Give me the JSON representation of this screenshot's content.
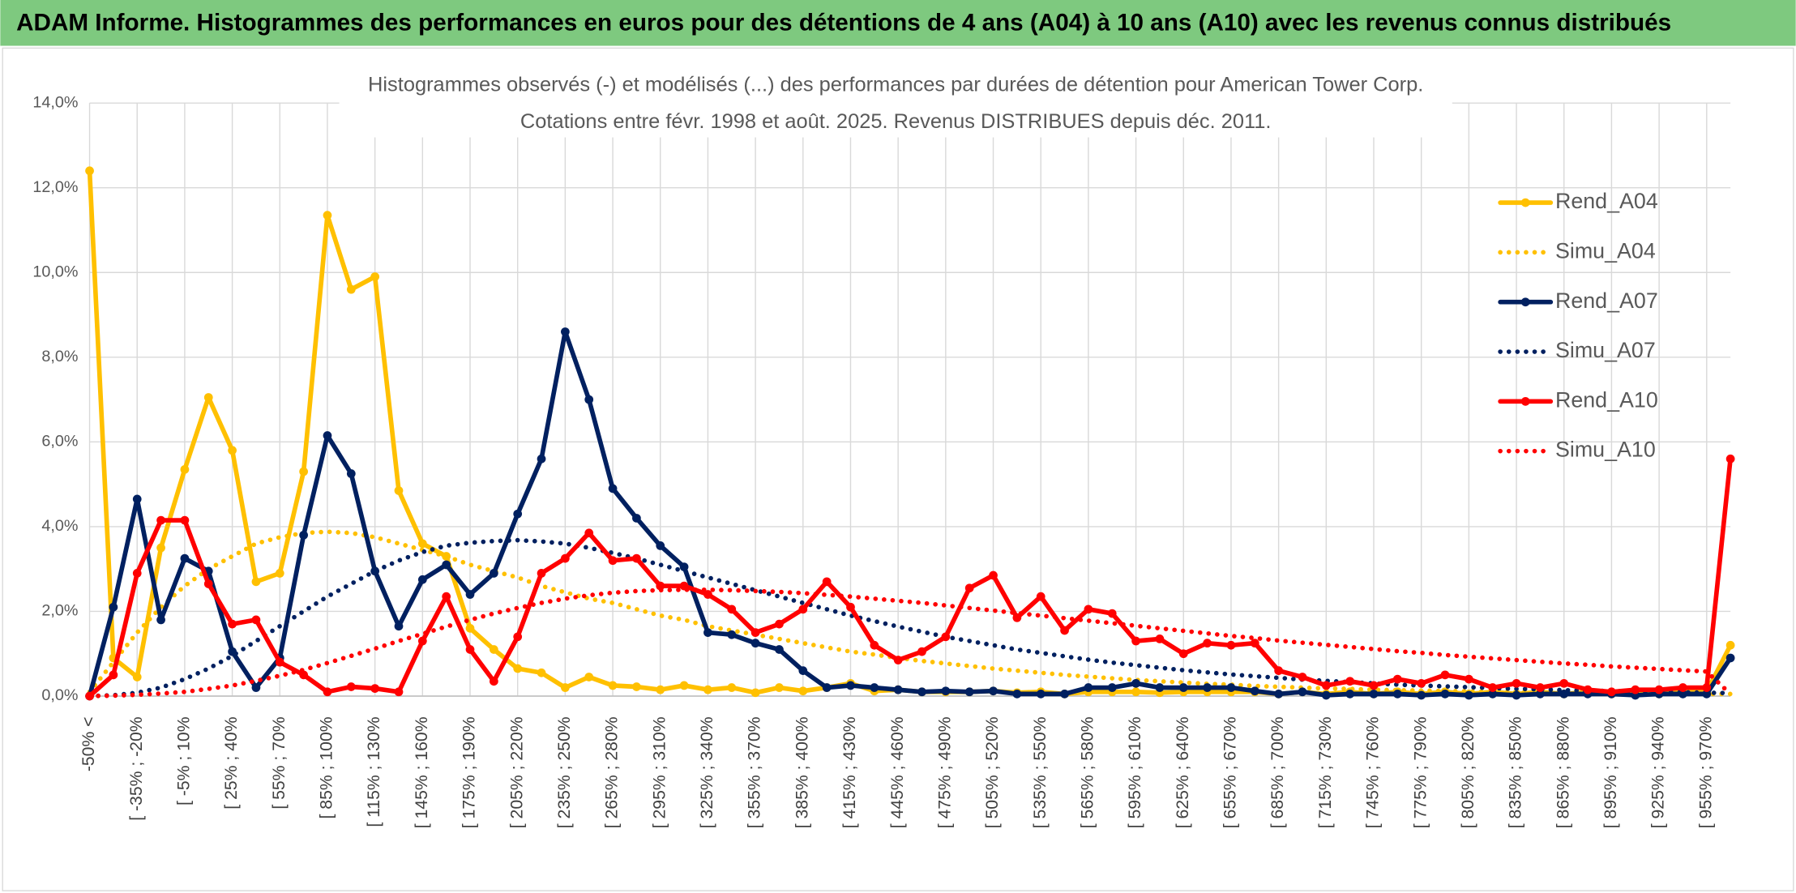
{
  "header": {
    "title": "ADAM Informe. Histogrammes des performances en euros pour des détentions de 4 ans (A04) à 10 ans (A10) avec les revenus connus distribués"
  },
  "chart_data": {
    "type": "line",
    "title": "Histogrammes observés (-) et modélisés (...) des performances par durées de détention pour American Tower Corp.",
    "subtitle": "Cotations entre févr. 1998 et août. 2025. Revenus DISTRIBUES depuis déc. 2011.",
    "categories": [
      "-50% <",
      null,
      "[ -35% ; -20%",
      null,
      "[ -5% ; 10%",
      null,
      "[ 25% ; 40%",
      null,
      "[ 55% ; 70%",
      null,
      "[ 85% ; 100%",
      null,
      "[ 115% ; 130%",
      null,
      "[ 145% ; 160%",
      null,
      "[ 175% ; 190%",
      null,
      "[ 205% ; 220%",
      null,
      "[ 235% ; 250%",
      null,
      "[ 265% ; 280%",
      null,
      "[ 295% ; 310%",
      null,
      "[ 325% ; 340%",
      null,
      "[ 355% ; 370%",
      null,
      "[ 385% ; 400%",
      null,
      "[ 415% ; 430%",
      null,
      "[ 445% ; 460%",
      null,
      "[ 475% ; 490%",
      null,
      "[ 505% ; 520%",
      null,
      "[ 535% ; 550%",
      null,
      "[ 565% ; 580%",
      null,
      "[ 595% ; 610%",
      null,
      "[ 625% ; 640%",
      null,
      "[ 655% ; 670%",
      null,
      "[ 685% ; 700%",
      null,
      "[ 715% ; 730%",
      null,
      "[ 745% ; 760%",
      null,
      "[ 775% ; 790%",
      null,
      "[ 805% ; 820%",
      null,
      "[ 835% ; 850%",
      null,
      "[ 865% ; 880%",
      null,
      "[ 895% ; 910%",
      null,
      "[ 925% ; 940%",
      null,
      "[ 955% ; 970%",
      null
    ],
    "series": [
      {
        "name": "Rend_A04",
        "color": "#ffc000",
        "style": "solid",
        "markers": true,
        "values": [
          12.4,
          0.9,
          0.45,
          3.5,
          5.35,
          7.05,
          5.8,
          2.7,
          2.9,
          5.3,
          11.35,
          9.6,
          9.9,
          4.85,
          3.6,
          3.3,
          1.6,
          1.1,
          0.65,
          0.55,
          0.2,
          0.45,
          0.25,
          0.22,
          0.15,
          0.25,
          0.15,
          0.2,
          0.08,
          0.2,
          0.12,
          0.2,
          0.3,
          0.12,
          0.15,
          0.1,
          0.1,
          0.1,
          0.12,
          0.08,
          0.1,
          0.05,
          0.1,
          0.1,
          0.1,
          0.08,
          0.1,
          0.1,
          0.1,
          0.1,
          0.05,
          0.1,
          0.05,
          0.1,
          0.05,
          0.1,
          0.05,
          0.1,
          0.05,
          0.1,
          0.05,
          0.1,
          0.05,
          0.1,
          0.05,
          0.1,
          0.05,
          0.1,
          0.1,
          1.2
        ]
      },
      {
        "name": "Simu_A04",
        "color": "#ffc000",
        "style": "dotted",
        "markers": false,
        "values": [
          0.1,
          0.8,
          1.5,
          2.1,
          2.6,
          3.0,
          3.3,
          3.6,
          3.75,
          3.85,
          3.88,
          3.85,
          3.75,
          3.6,
          3.45,
          3.3,
          3.1,
          2.95,
          2.8,
          2.6,
          2.45,
          2.3,
          2.2,
          2.05,
          1.9,
          1.8,
          1.65,
          1.55,
          1.45,
          1.35,
          1.25,
          1.15,
          1.05,
          0.98,
          0.9,
          0.83,
          0.77,
          0.71,
          0.65,
          0.6,
          0.55,
          0.5,
          0.46,
          0.42,
          0.38,
          0.35,
          0.32,
          0.29,
          0.27,
          0.24,
          0.22,
          0.2,
          0.18,
          0.17,
          0.15,
          0.14,
          0.13,
          0.12,
          0.11,
          0.1,
          0.09,
          0.09,
          0.08,
          0.08,
          0.07,
          0.07,
          0.06,
          0.06,
          0.05,
          0.05
        ]
      },
      {
        "name": "Rend_A07",
        "color": "#002060",
        "style": "solid",
        "markers": true,
        "values": [
          0,
          2.1,
          4.65,
          1.8,
          3.25,
          2.95,
          1.05,
          0.2,
          0.9,
          3.8,
          6.15,
          5.25,
          2.95,
          1.65,
          2.75,
          3.1,
          2.4,
          2.9,
          4.3,
          5.6,
          8.6,
          7.0,
          4.9,
          4.2,
          3.55,
          3.05,
          1.5,
          1.45,
          1.25,
          1.1,
          0.6,
          0.2,
          0.25,
          0.2,
          0.15,
          0.1,
          0.12,
          0.1,
          0.12,
          0.05,
          0.05,
          0.05,
          0.2,
          0.2,
          0.3,
          0.2,
          0.2,
          0.2,
          0.2,
          0.12,
          0.05,
          0.1,
          0.02,
          0.05,
          0.05,
          0.05,
          0.02,
          0.05,
          0.02,
          0.05,
          0.02,
          0.05,
          0.05,
          0.05,
          0.05,
          0.02,
          0.05,
          0.05,
          0.05,
          0.9
        ]
      },
      {
        "name": "Simu_A07",
        "color": "#002060",
        "style": "dotted",
        "markers": false,
        "values": [
          0,
          0.02,
          0.08,
          0.2,
          0.4,
          0.65,
          0.95,
          1.3,
          1.65,
          2.0,
          2.35,
          2.65,
          2.95,
          3.2,
          3.4,
          3.55,
          3.62,
          3.66,
          3.68,
          3.65,
          3.6,
          3.5,
          3.38,
          3.25,
          3.1,
          2.95,
          2.8,
          2.65,
          2.5,
          2.35,
          2.2,
          2.05,
          1.9,
          1.77,
          1.64,
          1.52,
          1.4,
          1.3,
          1.2,
          1.1,
          1.02,
          0.94,
          0.86,
          0.79,
          0.73,
          0.67,
          0.61,
          0.56,
          0.51,
          0.47,
          0.43,
          0.39,
          0.36,
          0.33,
          0.3,
          0.27,
          0.25,
          0.23,
          0.21,
          0.19,
          0.17,
          0.16,
          0.14,
          0.13,
          0.12,
          0.11,
          0.1,
          0.09,
          0.08,
          0.07
        ]
      },
      {
        "name": "Rend_A10",
        "color": "#ff0000",
        "style": "solid",
        "markers": true,
        "values": [
          0,
          0.5,
          2.9,
          4.15,
          4.15,
          2.65,
          1.7,
          1.8,
          0.8,
          0.5,
          0.1,
          0.22,
          0.18,
          0.1,
          1.3,
          2.35,
          1.1,
          0.35,
          1.4,
          2.9,
          3.25,
          3.85,
          3.2,
          3.25,
          2.6,
          2.6,
          2.4,
          2.05,
          1.5,
          1.7,
          2.05,
          2.7,
          2.1,
          1.2,
          0.85,
          1.05,
          1.4,
          2.55,
          2.85,
          1.85,
          2.35,
          1.55,
          2.05,
          1.95,
          1.3,
          1.35,
          1.0,
          1.25,
          1.2,
          1.25,
          0.6,
          0.45,
          0.25,
          0.35,
          0.25,
          0.4,
          0.3,
          0.5,
          0.4,
          0.2,
          0.3,
          0.2,
          0.3,
          0.15,
          0.1,
          0.15,
          0.15,
          0.2,
          0.2,
          5.6
        ]
      },
      {
        "name": "Simu_A10",
        "color": "#ff0000",
        "style": "dotted",
        "markers": false,
        "values": [
          0,
          0.01,
          0.03,
          0.06,
          0.1,
          0.17,
          0.25,
          0.36,
          0.48,
          0.62,
          0.78,
          0.95,
          1.12,
          1.3,
          1.47,
          1.64,
          1.8,
          1.95,
          2.08,
          2.2,
          2.3,
          2.38,
          2.44,
          2.48,
          2.5,
          2.51,
          2.51,
          2.5,
          2.48,
          2.46,
          2.43,
          2.39,
          2.35,
          2.3,
          2.25,
          2.2,
          2.14,
          2.08,
          2.02,
          1.96,
          1.9,
          1.84,
          1.78,
          1.72,
          1.66,
          1.6,
          1.54,
          1.48,
          1.42,
          1.37,
          1.31,
          1.26,
          1.21,
          1.16,
          1.11,
          1.06,
          1.02,
          0.97,
          0.93,
          0.89,
          0.85,
          0.81,
          0.77,
          0.74,
          0.7,
          0.67,
          0.64,
          0.61,
          0.58,
          0.05
        ]
      }
    ],
    "ylim": [
      0,
      14
    ],
    "yticks": [
      {
        "value": 0,
        "label": "0,0%"
      },
      {
        "value": 2,
        "label": "2,0%"
      },
      {
        "value": 4,
        "label": "4,0%"
      },
      {
        "value": 6,
        "label": "6,0%"
      },
      {
        "value": 8,
        "label": "8,0%"
      },
      {
        "value": 10,
        "label": "10,0%"
      },
      {
        "value": 12,
        "label": "12,0%"
      },
      {
        "value": 14,
        "label": "14,0%"
      }
    ],
    "grid": true,
    "legend": "right"
  }
}
